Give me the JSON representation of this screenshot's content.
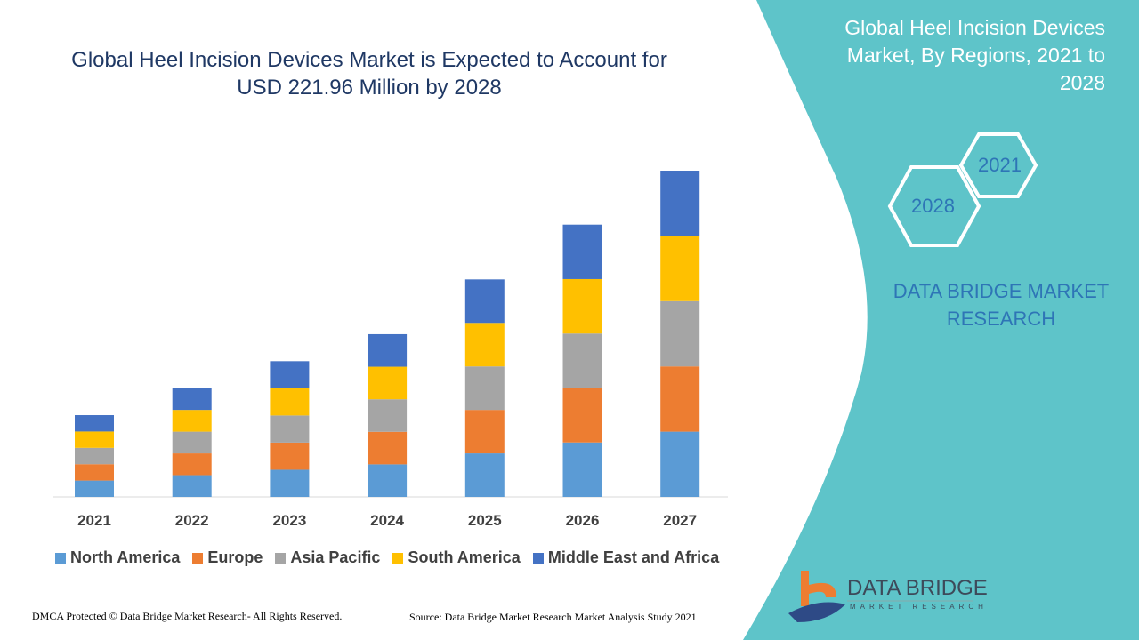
{
  "colors": {
    "panel": "#5ec4c9",
    "title": "#1f3864",
    "accent": "#2e75b6"
  },
  "title": "Global Heel Incision Devices Market is Expected to Account for USD 221.96 Million by 2028",
  "title_line1": "Global Heel Incision Devices Market is Expected to Account for",
  "title_line2": "USD 221.96 Million by 2028",
  "side_panel": {
    "title": "Global Heel Incision Devices Market, By Regions, 2021 to 2028",
    "hex_2021": "2021",
    "hex_2028": "2028",
    "brand": "DATA BRIDGE MARKET RESEARCH",
    "logo_text": "DATA BRIDGE",
    "logo_sub": "MARKET RESEARCH"
  },
  "footer": {
    "left": "DMCA Protected © Data Bridge Market Research- All Rights Reserved.",
    "right": "Source: Data Bridge Market Research Market Analysis Study 2021"
  },
  "chart_data": {
    "type": "bar",
    "stacked": true,
    "title": "",
    "xlabel": "",
    "ylabel": "",
    "categories": [
      "2021",
      "2022",
      "2023",
      "2024",
      "2025",
      "2026",
      "2027"
    ],
    "legend_position": "bottom",
    "grid": false,
    "series": [
      {
        "name": "North America",
        "color": "#5b9bd5",
        "values": [
          1.0,
          1.33,
          1.66,
          1.99,
          2.66,
          3.33,
          3.99
        ]
      },
      {
        "name": "Europe",
        "color": "#ed7d31",
        "values": [
          1.0,
          1.33,
          1.66,
          1.99,
          2.66,
          3.33,
          3.99
        ]
      },
      {
        "name": "Asia Pacific",
        "color": "#a5a5a5",
        "values": [
          1.0,
          1.33,
          1.66,
          1.99,
          2.66,
          3.33,
          3.99
        ]
      },
      {
        "name": "South America",
        "color": "#ffc000",
        "values": [
          1.0,
          1.33,
          1.66,
          1.99,
          2.66,
          3.33,
          3.99
        ]
      },
      {
        "name": "Middle East and Africa",
        "color": "#4472c4",
        "values": [
          1.0,
          1.33,
          1.66,
          1.99,
          2.66,
          3.33,
          3.99
        ]
      }
    ]
  }
}
